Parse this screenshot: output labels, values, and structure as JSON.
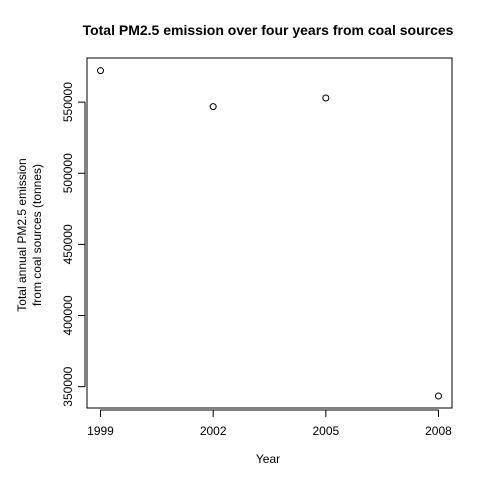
{
  "chart_data": {
    "type": "scatter",
    "title": "Total PM2.5 emission over four years from coal sources",
    "xlabel": "Year",
    "ylabel_lines": [
      "Total annual PM2.5 emission",
      "from coal sources (tonnes)"
    ],
    "x": [
      1999,
      2002,
      2005,
      2008
    ],
    "y": [
      572100,
      546800,
      552900,
      343400
    ],
    "xticks": [
      1999,
      2002,
      2005,
      2008
    ],
    "yticks": [
      350000,
      400000,
      450000,
      500000,
      550000
    ],
    "xlim": [
      1998.64,
      2008.36
    ],
    "ylim": [
      335000,
      581000
    ],
    "marker": "open-circle",
    "grid": false,
    "colors": {
      "points": "#000000",
      "axes": "#000000",
      "background": "#ffffff"
    }
  }
}
